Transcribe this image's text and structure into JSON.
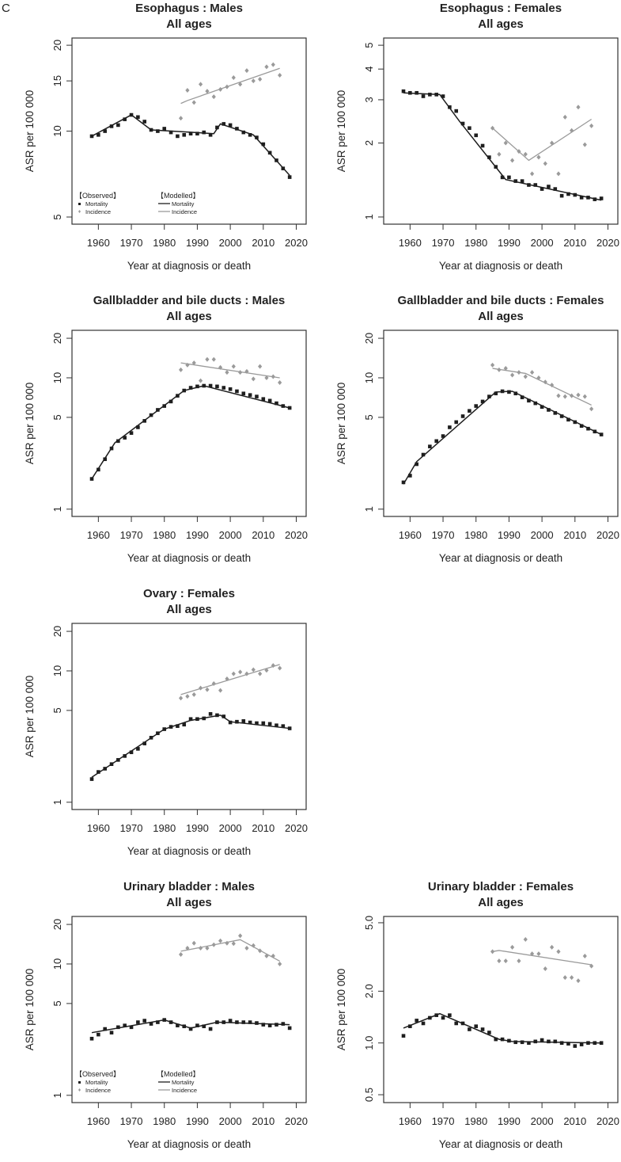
{
  "figure_label": "C",
  "colors": {
    "mortality": "#1e1e1e",
    "incidence": "#9a9a9a",
    "axis": "#333333"
  },
  "observed_years": {
    "mortality": [
      1958,
      1960,
      1962,
      1964,
      1966,
      1968,
      1970,
      1972,
      1974,
      1976,
      1978,
      1980,
      1982,
      1984,
      1986,
      1988,
      1990,
      1992,
      1994,
      1996,
      1998,
      2000,
      2002,
      2004,
      2006,
      2008,
      2010,
      2012,
      2014,
      2016,
      2018
    ],
    "incidence": [
      1985,
      1987,
      1989,
      1991,
      1993,
      1995,
      1997,
      1999,
      2001,
      2003,
      2005,
      2007,
      2009,
      2011,
      2013,
      2015
    ]
  },
  "legend": {
    "observed_header": "【Observed】",
    "modelled_header": "【Modelled】",
    "mortality": "Mortality",
    "incidence": "Incidence"
  },
  "chart_data": [
    {
      "type": "scatter+line",
      "scale_y": "log",
      "title": "Esophagus : Males",
      "subtitle": "All ages",
      "xlabel": "Year at diagnosis or death",
      "ylabel": "ASR per 100 000",
      "xlim": [
        1952,
        2023
      ],
      "ylim": [
        4.72,
        21.2
      ],
      "xticks": [
        1960,
        1970,
        1980,
        1990,
        2000,
        2010,
        2020
      ],
      "yticks": [
        "5",
        "10",
        "15",
        "20"
      ],
      "legend": "bottom-left",
      "observed_mortality": [
        9.6,
        9.7,
        10.0,
        10.4,
        10.5,
        11.0,
        11.4,
        11.2,
        10.8,
        10.1,
        10.0,
        10.2,
        9.9,
        9.6,
        9.7,
        9.8,
        9.8,
        9.9,
        9.7,
        10.3,
        10.6,
        10.5,
        10.2,
        9.9,
        9.7,
        9.5,
        9.0,
        8.4,
        7.9,
        7.4,
        6.9
      ],
      "observed_incidence": [
        11.1,
        13.9,
        12.6,
        14.6,
        13.8,
        13.2,
        14.0,
        14.3,
        15.4,
        14.6,
        16.3,
        15.0,
        15.2,
        16.8,
        17.1,
        15.7
      ],
      "modelled_mortality": [
        [
          1958,
          9.6
        ],
        [
          1970,
          11.4
        ],
        [
          1976,
          10.1
        ],
        [
          1995,
          9.8
        ],
        [
          1997,
          10.6
        ],
        [
          2007,
          9.7
        ],
        [
          2018,
          7.0
        ]
      ],
      "modelled_incidence": [
        [
          1985,
          12.5
        ],
        [
          1987,
          12.8
        ],
        [
          2015,
          16.6
        ]
      ]
    },
    {
      "type": "scatter+line",
      "scale_y": "log",
      "title": "Esophagus : Females",
      "subtitle": "All ages",
      "xlabel": "Year at diagnosis or death",
      "ylabel": "ASR per 100 000",
      "xlim": [
        1952,
        2023
      ],
      "ylim": [
        0.935,
        5.35
      ],
      "xticks": [
        1960,
        1970,
        1980,
        1990,
        2000,
        2010,
        2020
      ],
      "yticks": [
        "1",
        "2",
        "3",
        "4",
        "5"
      ],
      "observed_mortality": [
        3.25,
        3.2,
        3.2,
        3.1,
        3.15,
        3.15,
        3.1,
        2.8,
        2.7,
        2.4,
        2.3,
        2.15,
        1.95,
        1.75,
        1.6,
        1.45,
        1.45,
        1.4,
        1.4,
        1.35,
        1.35,
        1.3,
        1.33,
        1.3,
        1.22,
        1.24,
        1.23,
        1.2,
        1.2,
        1.18,
        1.19
      ],
      "observed_incidence": [
        2.3,
        1.8,
        2.0,
        1.7,
        1.85,
        1.8,
        1.5,
        1.75,
        1.65,
        2.0,
        1.5,
        2.55,
        2.25,
        2.8,
        1.97,
        2.35
      ],
      "modelled_mortality": [
        [
          1958,
          3.2
        ],
        [
          1969,
          3.15
        ],
        [
          1975,
          2.45
        ],
        [
          1989,
          1.42
        ],
        [
          2018,
          1.17
        ]
      ],
      "modelled_incidence": [
        [
          1985,
          2.3
        ],
        [
          1996,
          1.7
        ],
        [
          2015,
          2.5
        ]
      ]
    },
    {
      "type": "scatter+line",
      "scale_y": "log",
      "title": "Gallbladder and bile ducts : Males",
      "subtitle": "All ages",
      "xlabel": "Year at diagnosis or death",
      "ylabel": "ASR per 100 000",
      "xlim": [
        1952,
        2023
      ],
      "ylim": [
        0.88,
        23
      ],
      "xticks": [
        1960,
        1970,
        1980,
        1990,
        2000,
        2010,
        2020
      ],
      "yticks": [
        "1",
        "5",
        "10",
        "20"
      ],
      "observed_mortality": [
        1.7,
        2.0,
        2.4,
        2.9,
        3.3,
        3.5,
        3.8,
        4.2,
        4.7,
        5.2,
        5.7,
        6.1,
        6.6,
        7.3,
        8.0,
        8.4,
        8.6,
        8.7,
        8.7,
        8.6,
        8.4,
        8.2,
        7.9,
        7.6,
        7.4,
        7.2,
        6.9,
        6.7,
        6.4,
        6.1,
        5.9
      ],
      "observed_incidence": [
        11.5,
        12.5,
        13.0,
        9.5,
        13.8,
        13.8,
        12.0,
        11.0,
        12.2,
        11.0,
        11.2,
        9.8,
        12.2,
        10.0,
        10.2,
        9.2
      ],
      "modelled_mortality": [
        [
          1958,
          1.7
        ],
        [
          1965,
          3.2
        ],
        [
          1986,
          8.0
        ],
        [
          1992,
          8.7
        ],
        [
          2018,
          5.9
        ]
      ],
      "modelled_incidence": [
        [
          1985,
          13.0
        ],
        [
          2015,
          10.0
        ]
      ]
    },
    {
      "type": "scatter+line",
      "scale_y": "log",
      "title": "Gallbladder and bile ducts : Females",
      "subtitle": "All ages",
      "xlabel": "Year at diagnosis or death",
      "ylabel": "ASR per 100 000",
      "xlim": [
        1952,
        2023
      ],
      "ylim": [
        0.88,
        23
      ],
      "xticks": [
        1960,
        1970,
        1980,
        1990,
        2000,
        2010,
        2020
      ],
      "yticks": [
        "1",
        "5",
        "10",
        "20"
      ],
      "observed_mortality": [
        1.6,
        1.8,
        2.2,
        2.6,
        3.0,
        3.3,
        3.6,
        4.2,
        4.6,
        5.1,
        5.6,
        6.1,
        6.6,
        7.2,
        7.6,
        7.9,
        7.8,
        7.6,
        7.1,
        6.7,
        6.4,
        6.0,
        5.7,
        5.4,
        5.1,
        4.8,
        4.6,
        4.3,
        4.1,
        3.9,
        3.7
      ],
      "observed_incidence": [
        12.5,
        11.5,
        11.8,
        10.5,
        11.0,
        10.2,
        11.0,
        10.0,
        9.3,
        8.8,
        7.3,
        7.2,
        7.3,
        7.4,
        7.2,
        5.8
      ],
      "modelled_mortality": [
        [
          1958,
          1.55
        ],
        [
          1962,
          2.3
        ],
        [
          1986,
          7.8
        ],
        [
          1991,
          7.9
        ],
        [
          2018,
          3.7
        ]
      ],
      "modelled_incidence": [
        [
          1985,
          11.8
        ],
        [
          1995,
          10.8
        ],
        [
          2015,
          6.2
        ]
      ]
    },
    {
      "type": "scatter+line",
      "scale_y": "log",
      "title": "Ovary : Females",
      "subtitle": "All ages",
      "xlabel": "Year at diagnosis or death",
      "ylabel": "ASR per 100 000",
      "xlim": [
        1952,
        2023
      ],
      "ylim": [
        0.88,
        23
      ],
      "xticks": [
        1960,
        1970,
        1980,
        1990,
        2000,
        2010,
        2020
      ],
      "yticks": [
        "1",
        "5",
        "10",
        "20"
      ],
      "observed_mortality": [
        1.5,
        1.7,
        1.8,
        1.95,
        2.1,
        2.25,
        2.4,
        2.55,
        2.8,
        3.1,
        3.35,
        3.6,
        3.75,
        3.8,
        3.9,
        4.3,
        4.3,
        4.35,
        4.7,
        4.6,
        4.5,
        4.05,
        4.1,
        4.15,
        4.05,
        4.0,
        4.0,
        3.95,
        3.85,
        3.8,
        3.65
      ],
      "observed_incidence": [
        6.2,
        6.4,
        6.6,
        7.4,
        7.2,
        8.0,
        7.1,
        8.7,
        9.5,
        9.8,
        9.5,
        10.2,
        9.5,
        10.1,
        11.0,
        10.5
      ],
      "modelled_mortality": [
        [
          1958,
          1.55
        ],
        [
          1980,
          3.6
        ],
        [
          1988,
          4.2
        ],
        [
          1997,
          4.6
        ],
        [
          2000,
          4.1
        ],
        [
          2018,
          3.65
        ]
      ],
      "modelled_incidence": [
        [
          1985,
          6.6
        ],
        [
          2015,
          11.2
        ]
      ]
    },
    {
      "type": "scatter+line",
      "scale_y": "log",
      "title": "Urinary bladder : Males",
      "subtitle": "All ages",
      "xlabel": "Year at diagnosis or death",
      "ylabel": "ASR per 100 000",
      "xlim": [
        1952,
        2023
      ],
      "ylim": [
        0.88,
        23
      ],
      "xticks": [
        1960,
        1970,
        1980,
        1990,
        2000,
        2010,
        2020
      ],
      "yticks": [
        "1",
        "5",
        "10",
        "20"
      ],
      "legend": "bottom-left",
      "observed_mortality": [
        2.7,
        2.9,
        3.2,
        3.0,
        3.3,
        3.4,
        3.3,
        3.6,
        3.7,
        3.5,
        3.6,
        3.75,
        3.6,
        3.4,
        3.35,
        3.2,
        3.4,
        3.35,
        3.2,
        3.6,
        3.6,
        3.7,
        3.6,
        3.6,
        3.6,
        3.55,
        3.45,
        3.4,
        3.45,
        3.5,
        3.25
      ],
      "observed_incidence": [
        11.8,
        13.2,
        14.4,
        13.2,
        13.2,
        14.0,
        15.0,
        14.4,
        14.3,
        16.4,
        13.2,
        13.8,
        12.6,
        11.5,
        11.5,
        10.0
      ],
      "modelled_mortality": [
        [
          1958,
          3.0
        ],
        [
          1980,
          3.75
        ],
        [
          1988,
          3.25
        ],
        [
          1996,
          3.6
        ],
        [
          2018,
          3.45
        ]
      ],
      "modelled_incidence": [
        [
          1985,
          12.5
        ],
        [
          2003,
          15.3
        ],
        [
          2015,
          10.5
        ]
      ]
    },
    {
      "type": "scatter+line",
      "scale_y": "log",
      "title": "Urinary bladder : Females",
      "subtitle": "All ages",
      "xlabel": "Year at diagnosis or death",
      "ylabel": "ASR per 100 000",
      "xlim": [
        1952,
        2023
      ],
      "ylim": [
        0.45,
        5.44
      ],
      "xticks": [
        1960,
        1970,
        1980,
        1990,
        2000,
        2010,
        2020
      ],
      "yticks": [
        "0.5",
        "1.0",
        "2.0",
        "5.0"
      ],
      "observed_mortality": [
        1.1,
        1.25,
        1.35,
        1.3,
        1.4,
        1.45,
        1.4,
        1.45,
        1.3,
        1.3,
        1.2,
        1.25,
        1.2,
        1.15,
        1.05,
        1.05,
        1.03,
        1.01,
        1.01,
        1.0,
        1.02,
        1.04,
        1.02,
        1.02,
        1.0,
        0.99,
        0.96,
        0.98,
        1.0,
        1.0,
        1.0
      ],
      "observed_incidence": [
        3.4,
        3.0,
        3.0,
        3.6,
        3.0,
        4.0,
        3.3,
        3.3,
        2.7,
        3.6,
        3.4,
        2.4,
        2.4,
        2.3,
        3.2,
        2.8
      ],
      "modelled_mortality": [
        [
          1958,
          1.22
        ],
        [
          1969,
          1.48
        ],
        [
          1987,
          1.05
        ],
        [
          1991,
          1.02
        ],
        [
          2018,
          1.0
        ]
      ],
      "modelled_incidence": [
        [
          1985,
          3.4
        ],
        [
          1987,
          3.45
        ],
        [
          2015,
          2.85
        ]
      ]
    }
  ]
}
